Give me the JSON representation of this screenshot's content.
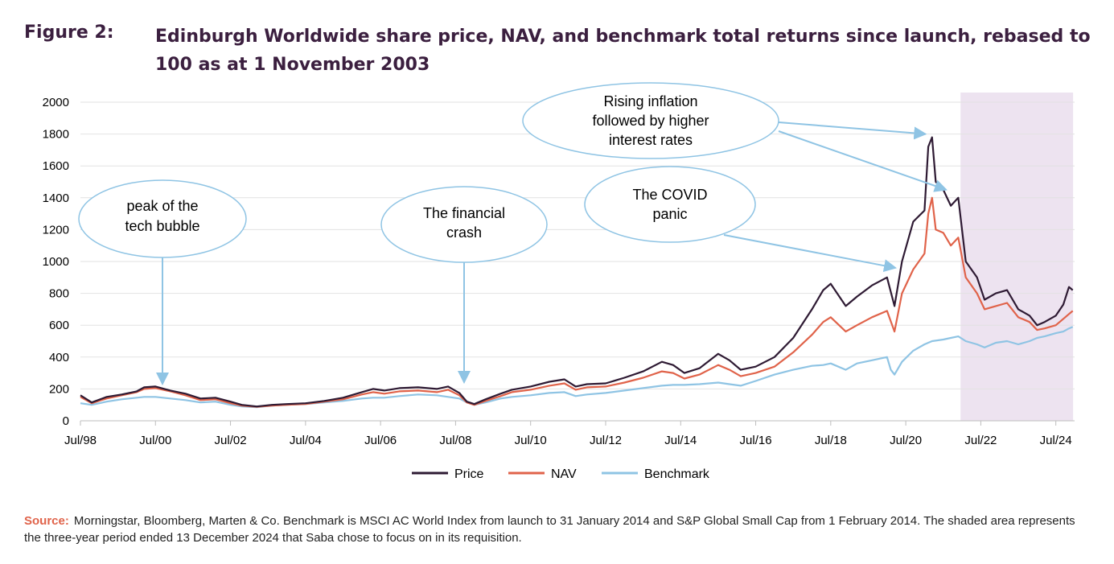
{
  "figure": {
    "label": "Figure 2:",
    "title": "Edinburgh Worldwide share price, NAV, and benchmark total returns since launch, rebased to 100 as at 1 November 2003"
  },
  "source": {
    "label": "Source:",
    "text": "Morningstar, Bloomberg, Marten & Co. Benchmark is MSCI AC World Index from launch to 31 January 2014 and S&P Global Small Cap from 1 February 2014. The shaded area represents the three-year period ended 13 December 2024 that Saba chose to focus on in its requisition."
  },
  "chart_data": {
    "type": "line",
    "title": "",
    "xlabel": "",
    "ylabel": "",
    "x_range": [
      1998.5,
      2025.0
    ],
    "ylim": [
      0,
      2000
    ],
    "y_ticks": [
      0,
      200,
      400,
      600,
      800,
      1000,
      1200,
      1400,
      1600,
      1800,
      2000
    ],
    "x_ticks": [
      {
        "label": "Jul/98",
        "x": 1998.5
      },
      {
        "label": "Jul/00",
        "x": 2000.5
      },
      {
        "label": "Jul/02",
        "x": 2002.5
      },
      {
        "label": "Jul/04",
        "x": 2004.5
      },
      {
        "label": "Jul/06",
        "x": 2006.5
      },
      {
        "label": "Jul/08",
        "x": 2008.5
      },
      {
        "label": "Jul/10",
        "x": 2010.5
      },
      {
        "label": "Jul/12",
        "x": 2012.5
      },
      {
        "label": "Jul/14",
        "x": 2014.5
      },
      {
        "label": "Jul/16",
        "x": 2016.5
      },
      {
        "label": "Jul/18",
        "x": 2018.5
      },
      {
        "label": "Jul/20",
        "x": 2020.5
      },
      {
        "label": "Jul/22",
        "x": 2022.5
      },
      {
        "label": "Jul/24",
        "x": 2024.5
      }
    ],
    "grid": "horizontal",
    "legend_position": "bottom",
    "shaded_region": {
      "x_start": 2021.96,
      "x_end": 2024.96,
      "color": "#ede3f0"
    },
    "series": [
      {
        "name": "Price",
        "color": "#2e1a33",
        "points": [
          [
            1998.5,
            160
          ],
          [
            1998.8,
            115
          ],
          [
            1999.2,
            150
          ],
          [
            1999.6,
            165
          ],
          [
            2000.0,
            185
          ],
          [
            2000.2,
            210
          ],
          [
            2000.5,
            215
          ],
          [
            2000.9,
            190
          ],
          [
            2001.3,
            170
          ],
          [
            2001.7,
            140
          ],
          [
            2002.1,
            145
          ],
          [
            2002.5,
            120
          ],
          [
            2002.8,
            100
          ],
          [
            2003.2,
            90
          ],
          [
            2003.6,
            100
          ],
          [
            2004.0,
            105
          ],
          [
            2004.5,
            110
          ],
          [
            2005.0,
            125
          ],
          [
            2005.5,
            145
          ],
          [
            2006.0,
            180
          ],
          [
            2006.3,
            200
          ],
          [
            2006.6,
            190
          ],
          [
            2007.0,
            205
          ],
          [
            2007.5,
            210
          ],
          [
            2008.0,
            200
          ],
          [
            2008.3,
            215
          ],
          [
            2008.6,
            175
          ],
          [
            2008.8,
            120
          ],
          [
            2009.0,
            105
          ],
          [
            2009.3,
            135
          ],
          [
            2009.7,
            170
          ],
          [
            2010.0,
            195
          ],
          [
            2010.5,
            215
          ],
          [
            2011.0,
            245
          ],
          [
            2011.4,
            260
          ],
          [
            2011.7,
            215
          ],
          [
            2012.0,
            230
          ],
          [
            2012.5,
            235
          ],
          [
            2013.0,
            270
          ],
          [
            2013.5,
            310
          ],
          [
            2014.0,
            370
          ],
          [
            2014.3,
            350
          ],
          [
            2014.6,
            300
          ],
          [
            2015.0,
            330
          ],
          [
            2015.5,
            420
          ],
          [
            2015.8,
            380
          ],
          [
            2016.1,
            320
          ],
          [
            2016.5,
            340
          ],
          [
            2017.0,
            400
          ],
          [
            2017.5,
            520
          ],
          [
            2018.0,
            700
          ],
          [
            2018.3,
            820
          ],
          [
            2018.5,
            860
          ],
          [
            2018.9,
            720
          ],
          [
            2019.2,
            780
          ],
          [
            2019.6,
            850
          ],
          [
            2020.0,
            900
          ],
          [
            2020.2,
            720
          ],
          [
            2020.4,
            1000
          ],
          [
            2020.7,
            1250
          ],
          [
            2021.0,
            1320
          ],
          [
            2021.1,
            1720
          ],
          [
            2021.2,
            1780
          ],
          [
            2021.3,
            1500
          ],
          [
            2021.5,
            1450
          ],
          [
            2021.7,
            1350
          ],
          [
            2021.9,
            1400
          ],
          [
            2022.1,
            1000
          ],
          [
            2022.4,
            900
          ],
          [
            2022.6,
            760
          ],
          [
            2022.9,
            800
          ],
          [
            2023.2,
            820
          ],
          [
            2023.5,
            700
          ],
          [
            2023.8,
            660
          ],
          [
            2024.0,
            600
          ],
          [
            2024.2,
            620
          ],
          [
            2024.5,
            660
          ],
          [
            2024.7,
            730
          ],
          [
            2024.85,
            840
          ],
          [
            2024.95,
            820
          ]
        ]
      },
      {
        "name": "NAV",
        "color": "#e0634a",
        "points": [
          [
            1998.5,
            150
          ],
          [
            1998.8,
            110
          ],
          [
            1999.2,
            140
          ],
          [
            1999.6,
            160
          ],
          [
            2000.0,
            180
          ],
          [
            2000.2,
            200
          ],
          [
            2000.5,
            205
          ],
          [
            2000.9,
            185
          ],
          [
            2001.3,
            160
          ],
          [
            2001.7,
            130
          ],
          [
            2002.1,
            135
          ],
          [
            2002.5,
            110
          ],
          [
            2002.8,
            95
          ],
          [
            2003.2,
            88
          ],
          [
            2003.6,
            95
          ],
          [
            2004.0,
            100
          ],
          [
            2004.5,
            105
          ],
          [
            2005.0,
            120
          ],
          [
            2005.5,
            135
          ],
          [
            2006.0,
            165
          ],
          [
            2006.3,
            180
          ],
          [
            2006.6,
            170
          ],
          [
            2007.0,
            185
          ],
          [
            2007.5,
            190
          ],
          [
            2008.0,
            180
          ],
          [
            2008.3,
            195
          ],
          [
            2008.6,
            160
          ],
          [
            2008.8,
            115
          ],
          [
            2009.0,
            100
          ],
          [
            2009.3,
            125
          ],
          [
            2009.7,
            155
          ],
          [
            2010.0,
            180
          ],
          [
            2010.5,
            195
          ],
          [
            2011.0,
            220
          ],
          [
            2011.4,
            235
          ],
          [
            2011.7,
            195
          ],
          [
            2012.0,
            210
          ],
          [
            2012.5,
            215
          ],
          [
            2013.0,
            240
          ],
          [
            2013.5,
            270
          ],
          [
            2014.0,
            310
          ],
          [
            2014.3,
            300
          ],
          [
            2014.6,
            265
          ],
          [
            2015.0,
            290
          ],
          [
            2015.5,
            350
          ],
          [
            2015.8,
            320
          ],
          [
            2016.1,
            280
          ],
          [
            2016.5,
            300
          ],
          [
            2017.0,
            340
          ],
          [
            2017.5,
            430
          ],
          [
            2018.0,
            540
          ],
          [
            2018.3,
            620
          ],
          [
            2018.5,
            650
          ],
          [
            2018.9,
            560
          ],
          [
            2019.2,
            600
          ],
          [
            2019.6,
            650
          ],
          [
            2020.0,
            690
          ],
          [
            2020.2,
            560
          ],
          [
            2020.4,
            800
          ],
          [
            2020.7,
            950
          ],
          [
            2021.0,
            1050
          ],
          [
            2021.1,
            1300
          ],
          [
            2021.2,
            1400
          ],
          [
            2021.3,
            1200
          ],
          [
            2021.5,
            1180
          ],
          [
            2021.7,
            1100
          ],
          [
            2021.9,
            1150
          ],
          [
            2022.1,
            900
          ],
          [
            2022.4,
            800
          ],
          [
            2022.6,
            700
          ],
          [
            2022.9,
            720
          ],
          [
            2023.2,
            740
          ],
          [
            2023.5,
            650
          ],
          [
            2023.8,
            620
          ],
          [
            2024.0,
            570
          ],
          [
            2024.2,
            580
          ],
          [
            2024.5,
            600
          ],
          [
            2024.7,
            640
          ],
          [
            2024.85,
            670
          ],
          [
            2024.95,
            690
          ]
        ]
      },
      {
        "name": "Benchmark",
        "color": "#8fc4e4",
        "points": [
          [
            1998.5,
            110
          ],
          [
            1998.8,
            100
          ],
          [
            1999.2,
            120
          ],
          [
            1999.6,
            135
          ],
          [
            2000.0,
            145
          ],
          [
            2000.2,
            150
          ],
          [
            2000.5,
            150
          ],
          [
            2000.9,
            140
          ],
          [
            2001.3,
            130
          ],
          [
            2001.7,
            115
          ],
          [
            2002.1,
            120
          ],
          [
            2002.5,
            100
          ],
          [
            2002.8,
            90
          ],
          [
            2003.2,
            85
          ],
          [
            2003.6,
            95
          ],
          [
            2004.0,
            100
          ],
          [
            2004.5,
            105
          ],
          [
            2005.0,
            115
          ],
          [
            2005.5,
            125
          ],
          [
            2006.0,
            140
          ],
          [
            2006.3,
            145
          ],
          [
            2006.6,
            145
          ],
          [
            2007.0,
            155
          ],
          [
            2007.5,
            165
          ],
          [
            2008.0,
            160
          ],
          [
            2008.3,
            150
          ],
          [
            2008.6,
            140
          ],
          [
            2008.8,
            115
          ],
          [
            2009.0,
            100
          ],
          [
            2009.3,
            115
          ],
          [
            2009.7,
            140
          ],
          [
            2010.0,
            150
          ],
          [
            2010.5,
            160
          ],
          [
            2011.0,
            175
          ],
          [
            2011.4,
            180
          ],
          [
            2011.7,
            155
          ],
          [
            2012.0,
            165
          ],
          [
            2012.5,
            175
          ],
          [
            2013.0,
            190
          ],
          [
            2013.5,
            205
          ],
          [
            2014.0,
            220
          ],
          [
            2014.3,
            225
          ],
          [
            2014.6,
            225
          ],
          [
            2015.0,
            230
          ],
          [
            2015.5,
            240
          ],
          [
            2015.8,
            230
          ],
          [
            2016.1,
            220
          ],
          [
            2016.5,
            250
          ],
          [
            2017.0,
            290
          ],
          [
            2017.5,
            320
          ],
          [
            2018.0,
            345
          ],
          [
            2018.3,
            350
          ],
          [
            2018.5,
            360
          ],
          [
            2018.9,
            320
          ],
          [
            2019.2,
            360
          ],
          [
            2019.6,
            380
          ],
          [
            2020.0,
            400
          ],
          [
            2020.1,
            320
          ],
          [
            2020.2,
            290
          ],
          [
            2020.4,
            370
          ],
          [
            2020.7,
            440
          ],
          [
            2021.0,
            480
          ],
          [
            2021.2,
            500
          ],
          [
            2021.5,
            510
          ],
          [
            2021.7,
            520
          ],
          [
            2021.9,
            530
          ],
          [
            2022.1,
            500
          ],
          [
            2022.4,
            480
          ],
          [
            2022.6,
            460
          ],
          [
            2022.9,
            490
          ],
          [
            2023.2,
            500
          ],
          [
            2023.5,
            480
          ],
          [
            2023.8,
            500
          ],
          [
            2024.0,
            520
          ],
          [
            2024.2,
            530
          ],
          [
            2024.5,
            550
          ],
          [
            2024.7,
            560
          ],
          [
            2024.85,
            580
          ],
          [
            2024.95,
            590
          ]
        ]
      }
    ],
    "annotations": [
      {
        "lines": [
          "peak of the",
          "tech bubble"
        ],
        "target": [
          2000.5,
          220
        ]
      },
      {
        "lines": [
          "The financial",
          "crash"
        ],
        "target": [
          2008.5,
          230
        ]
      },
      {
        "lines": [
          "The COVID",
          "panic"
        ],
        "target": [
          2020.4,
          960
        ]
      },
      {
        "lines": [
          "Rising inflation",
          "followed by higher",
          "interest rates"
        ],
        "targets": [
          [
            2021.2,
            1790
          ],
          [
            2021.75,
            1440
          ]
        ]
      }
    ]
  }
}
